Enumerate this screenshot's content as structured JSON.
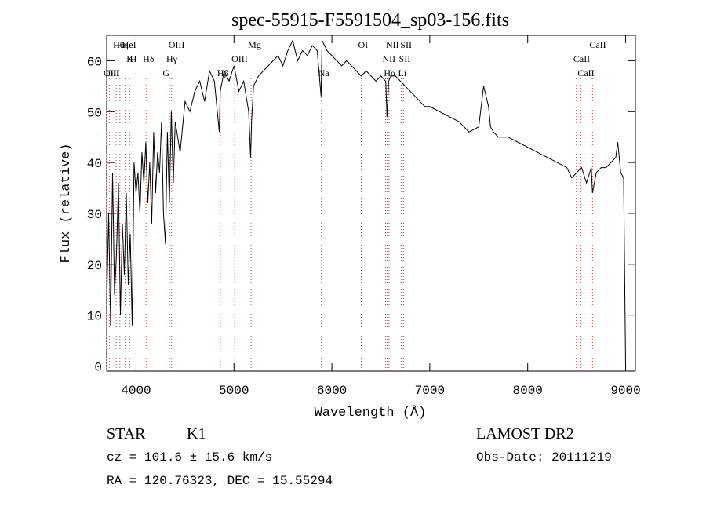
{
  "chart_data": {
    "type": "line",
    "title": "spec-55915-F5591504_sp03-156.fits",
    "xlabel": "Wavelength (Å)",
    "ylabel": "Flux (relative)",
    "xlim": [
      3700,
      9100
    ],
    "ylim": [
      -1,
      65
    ],
    "xticks": [
      4000,
      5000,
      6000,
      7000,
      8000,
      9000
    ],
    "yticks": [
      0,
      10,
      20,
      30,
      40,
      50,
      60
    ],
    "grid": false,
    "line_color": "#000000",
    "marker_color": "#d04040",
    "spectrum": {
      "x": [
        3700,
        3720,
        3740,
        3760,
        3780,
        3800,
        3820,
        3840,
        3860,
        3880,
        3900,
        3920,
        3940,
        3960,
        3980,
        4000,
        4020,
        4040,
        4060,
        4080,
        4100,
        4120,
        4140,
        4160,
        4180,
        4200,
        4220,
        4240,
        4260,
        4280,
        4300,
        4320,
        4340,
        4360,
        4380,
        4400,
        4450,
        4500,
        4550,
        4600,
        4650,
        4700,
        4750,
        4800,
        4850,
        4860,
        4900,
        4950,
        5000,
        5050,
        5100,
        5150,
        5170,
        5180,
        5200,
        5250,
        5300,
        5350,
        5400,
        5450,
        5500,
        5550,
        5600,
        5650,
        5700,
        5750,
        5800,
        5850,
        5890,
        5900,
        5950,
        6000,
        6050,
        6100,
        6150,
        6200,
        6250,
        6300,
        6350,
        6400,
        6450,
        6500,
        6550,
        6563,
        6580,
        6600,
        6650,
        6700,
        6750,
        6800,
        6850,
        6900,
        6950,
        7000,
        7100,
        7200,
        7300,
        7400,
        7500,
        7550,
        7600,
        7620,
        7650,
        7700,
        7800,
        7900,
        8000,
        8100,
        8200,
        8300,
        8400,
        8450,
        8500,
        8550,
        8600,
        8650,
        8662,
        8700,
        8750,
        8800,
        8850,
        8900,
        8920,
        8950,
        8980,
        9000
      ],
      "y": [
        12,
        30,
        8,
        38,
        14,
        22,
        36,
        10,
        28,
        18,
        34,
        16,
        26,
        8,
        40,
        34,
        38,
        30,
        42,
        36,
        44,
        32,
        40,
        28,
        46,
        34,
        42,
        38,
        48,
        30,
        24,
        46,
        32,
        50,
        36,
        48,
        42,
        52,
        50,
        54,
        56,
        52,
        58,
        56,
        46,
        54,
        58,
        56,
        59,
        54,
        56,
        50,
        41,
        48,
        55,
        57,
        58,
        59,
        60,
        61,
        59,
        62,
        64,
        60,
        62,
        61,
        63,
        62,
        53,
        64,
        62,
        61,
        60,
        59,
        60,
        59,
        58,
        57,
        58,
        57,
        56,
        57,
        56,
        49,
        56,
        57,
        57,
        56,
        55,
        54,
        53,
        52,
        51,
        51,
        50,
        49,
        48,
        46,
        47,
        55,
        51,
        47,
        46,
        45,
        45,
        44,
        43,
        42,
        41,
        40,
        39,
        37,
        38,
        39,
        36,
        39,
        34,
        38,
        39,
        39,
        40,
        41,
        44,
        38,
        37,
        0
      ]
    },
    "line_markers": [
      {
        "label": "Hθ",
        "wavelength": 3797
      },
      {
        "label": "K",
        "wavelength": 3934
      },
      {
        "label": "OII",
        "wavelength": 3727
      },
      {
        "label": "HeI",
        "wavelength": 3889
      },
      {
        "label": "Hδ",
        "wavelength": 4102
      },
      {
        "label": "OIII",
        "wavelength": 3700
      },
      {
        "label": "Hη",
        "wavelength": 3835
      },
      {
        "label": "H",
        "wavelength": 3969
      },
      {
        "label": "G",
        "wavelength": 4304
      },
      {
        "label": "OIII",
        "wavelength": 4363
      },
      {
        "label": "Hγ",
        "wavelength": 4341
      },
      {
        "label": "Hβ",
        "wavelength": 4861
      },
      {
        "label": "Mg",
        "wavelength": 5175
      },
      {
        "label": "OIII",
        "wavelength": 5007
      },
      {
        "label": "Na",
        "wavelength": 5893
      },
      {
        "label": "OI",
        "wavelength": 6300
      },
      {
        "label": "NII",
        "wavelength": 6548
      },
      {
        "label": "Li",
        "wavelength": 6708
      },
      {
        "label": "NII",
        "wavelength": 6584
      },
      {
        "label": "SII",
        "wavelength": 6717
      },
      {
        "label": "Hα",
        "wavelength": 6563
      },
      {
        "label": "SII",
        "wavelength": 6731
      },
      {
        "label": "CaII",
        "wavelength": 8498
      },
      {
        "label": "CaII",
        "wavelength": 8542
      },
      {
        "label": "CaII",
        "wavelength": 8662
      }
    ]
  },
  "info": {
    "class": "STAR",
    "subclass": "K1",
    "survey": "LAMOST DR2",
    "cz": "cz = 101.6 ± 15.6 km/s",
    "obs_date": "Obs-Date: 20111219",
    "radec": "RA = 120.76323, DEC =  15.55294"
  }
}
